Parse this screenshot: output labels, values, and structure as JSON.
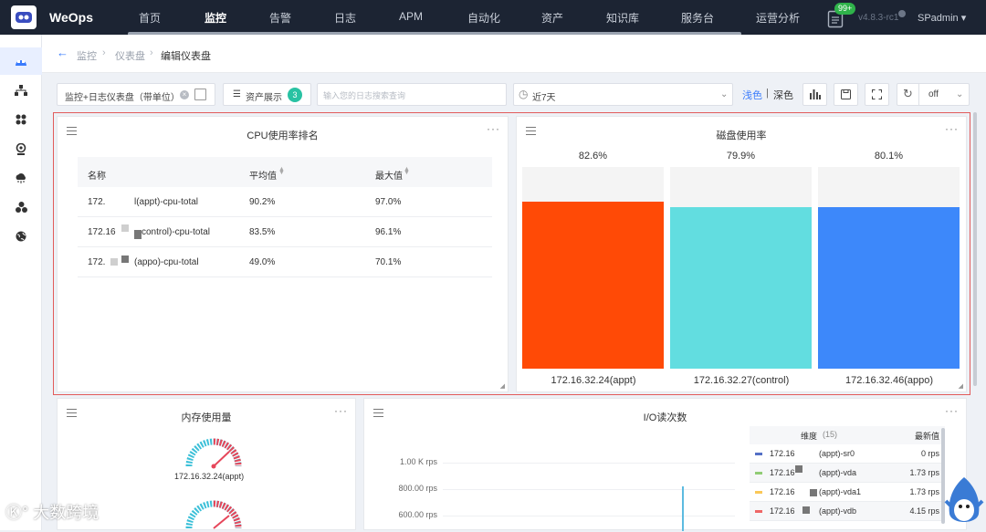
{
  "topbar": {
    "brand": "WeOps",
    "nav": [
      "首页",
      "监控",
      "告警",
      "日志",
      "APM",
      "自动化",
      "资产",
      "知识库",
      "服务台",
      "运营分析"
    ],
    "active_nav": "监控",
    "notif_badge": "99+",
    "version": "v4.8.3-rc1",
    "user": "SPadmin"
  },
  "sidebar": {
    "icons": [
      "dashboard-icon",
      "topology-icon",
      "apps-icon",
      "webcam-icon",
      "cloud-icon",
      "cluster-icon",
      "globe-icon"
    ]
  },
  "breadcrumb": [
    "监控",
    "仪表盘",
    "编辑仪表盘"
  ],
  "toolbar": {
    "dashboard_name": "监控+日志仪表盘（带单位）",
    "asset_label": "资产展示",
    "asset_count": "3",
    "log_search_placeholder": "输入您的日志搜索查询",
    "time_range": "近7天",
    "theme_light": "浅色",
    "theme_sep": "|",
    "theme_dark": "深色",
    "refresh": "off"
  },
  "cpu_panel": {
    "title": "CPU使用率排名",
    "columns": [
      "名称",
      "平均值",
      "最大值"
    ],
    "rows": [
      {
        "name_a": "172.",
        "name_b": "l(appt)-cpu-total",
        "avg": "90.2%",
        "max": "97.0%"
      },
      {
        "name_a": "172.16",
        "name_b": "control)-cpu-total",
        "avg": "83.5%",
        "max": "96.1%"
      },
      {
        "name_a": "172.",
        "name_b": "(appo)-cpu-total",
        "avg": "49.0%",
        "max": "70.1%"
      }
    ]
  },
  "chart_data": {
    "type": "bar",
    "title": "磁盘使用率",
    "categories": [
      "172.16.32.24(appt)",
      "172.16.32.27(control)",
      "172.16.32.46(appo)"
    ],
    "values": [
      82.6,
      79.9,
      80.1
    ],
    "value_labels": [
      "82.6%",
      "79.9%",
      "80.1%"
    ],
    "colors": [
      "#ff4a06",
      "#62dde0",
      "#3d88fa"
    ],
    "ylim": [
      0,
      100
    ],
    "grid": false
  },
  "mem_panel": {
    "title": "内存使用量",
    "gauge_labels": [
      "172.16.32.24(appt)"
    ]
  },
  "io_panel": {
    "title": "I/O读次数",
    "yticks": [
      "1.00 K rps",
      "800.00 rps",
      "600.00 rps"
    ],
    "legend_head": "维度",
    "legend_count": "(15)",
    "legend_latest": "最新值",
    "legend": [
      {
        "name_a": "172.16",
        "name_b": "(appt)-sr0",
        "value": "0 rps",
        "color": "#5470c6"
      },
      {
        "name_a": "172.16",
        "name_b": "(appt)-vda",
        "value": "1.73 rps",
        "color": "#91cc75"
      },
      {
        "name_a": "172.16",
        "name_b": "(appt)-vda1",
        "value": "1.73 rps",
        "color": "#fac858"
      },
      {
        "name_a": "172.16",
        "name_b": "(appt)-vdb",
        "value": "4.15 rps",
        "color": "#ee6666"
      }
    ]
  },
  "watermark": "大数跨境"
}
